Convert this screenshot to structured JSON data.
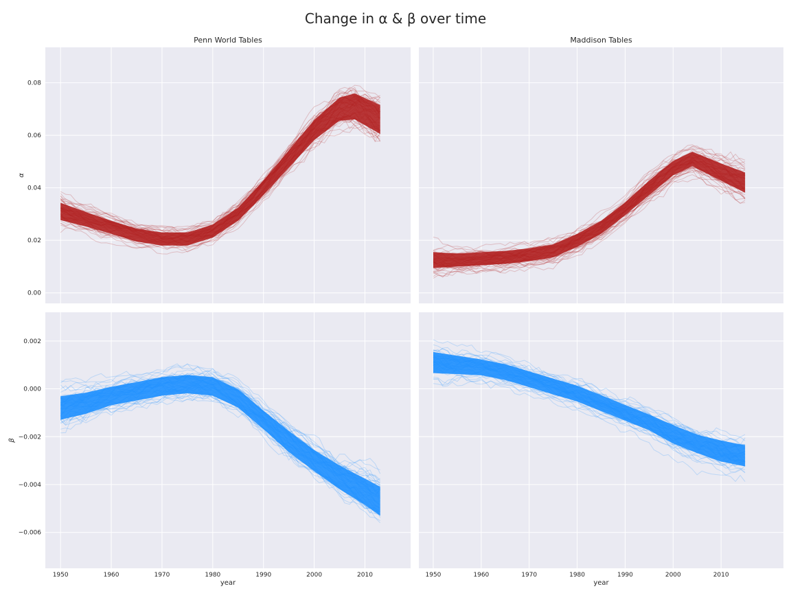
{
  "figure": {
    "title": "Change in α & β over time"
  },
  "chart_data": [
    {
      "type": "line",
      "panel": "top-left",
      "title": "Penn World Tables",
      "xlabel": "",
      "ylabel": "α",
      "xlim": [
        1947,
        2019
      ],
      "ylim": [
        -0.004,
        0.0935
      ],
      "x_ticks": [
        1950,
        1960,
        1970,
        1980,
        1990,
        2000,
        2010
      ],
      "y_ticks": [
        0.0,
        0.02,
        0.04,
        0.06,
        0.08
      ],
      "y_tick_labels": [
        "0.00",
        "0.02",
        "0.04",
        "0.06",
        "0.08"
      ],
      "x_tick_labels_visible": false,
      "grid": true,
      "color": "#b22222",
      "series": [
        {
          "x": [
            1950,
            1955,
            1960,
            1965,
            1970,
            1975,
            1980,
            1985,
            1990,
            1995,
            2000,
            2005,
            2008,
            2013
          ],
          "values": [
            0.031,
            0.028,
            0.025,
            0.022,
            0.0205,
            0.0205,
            0.0235,
            0.03,
            0.04,
            0.051,
            0.062,
            0.07,
            0.071,
            0.066
          ],
          "spread": [
            0.006,
            0.005,
            0.0045,
            0.0045,
            0.0045,
            0.0045,
            0.0045,
            0.0045,
            0.005,
            0.006,
            0.007,
            0.008,
            0.009,
            0.01
          ]
        }
      ]
    },
    {
      "type": "line",
      "panel": "top-right",
      "title": "Maddison Tables",
      "xlabel": "",
      "ylabel": "",
      "xlim": [
        1947,
        2023
      ],
      "ylim": [
        -0.004,
        0.0935
      ],
      "x_ticks": [
        1950,
        1960,
        1970,
        1980,
        1990,
        2000,
        2010
      ],
      "y_ticks": [
        0.0,
        0.02,
        0.04,
        0.06,
        0.08
      ],
      "x_tick_labels_visible": false,
      "y_tick_labels_visible": false,
      "grid": true,
      "color": "#b22222",
      "series": [
        {
          "x": [
            1950,
            1955,
            1960,
            1965,
            1970,
            1975,
            1980,
            1985,
            1990,
            1995,
            2000,
            2004,
            2010,
            2015
          ],
          "values": [
            0.0125,
            0.0125,
            0.013,
            0.0135,
            0.0145,
            0.016,
            0.02,
            0.025,
            0.032,
            0.04,
            0.0475,
            0.051,
            0.046,
            0.042
          ],
          "spread": [
            0.0055,
            0.0045,
            0.0045,
            0.0045,
            0.0045,
            0.0045,
            0.0045,
            0.0045,
            0.0045,
            0.005,
            0.005,
            0.005,
            0.006,
            0.007
          ]
        }
      ]
    },
    {
      "type": "line",
      "panel": "bottom-left",
      "title": "",
      "xlabel": "year",
      "ylabel": "β",
      "xlim": [
        1947,
        2019
      ],
      "ylim": [
        -0.0075,
        0.0032
      ],
      "x_ticks": [
        1950,
        1960,
        1970,
        1980,
        1990,
        2000,
        2010
      ],
      "x_tick_labels": [
        "1950",
        "1960",
        "1970",
        "1980",
        "1990",
        "2000",
        "2010"
      ],
      "y_ticks": [
        -0.006,
        -0.004,
        -0.002,
        0.0,
        0.002
      ],
      "y_tick_labels": [
        "−0.006",
        "−0.004",
        "−0.002",
        "0.000",
        "0.002"
      ],
      "grid": true,
      "color": "#1e90ff",
      "series": [
        {
          "x": [
            1950,
            1955,
            1960,
            1965,
            1970,
            1975,
            1980,
            1985,
            1990,
            1995,
            2000,
            2005,
            2010,
            2013
          ],
          "values": [
            -0.0008,
            -0.0006,
            -0.0003,
            -0.0001,
            0.0001,
            0.0002,
            0.0001,
            -0.0004,
            -0.0013,
            -0.0022,
            -0.003,
            -0.0037,
            -0.0043,
            -0.0047
          ],
          "spread": [
            0.0009,
            0.0008,
            0.0007,
            0.0007,
            0.0007,
            0.0007,
            0.0007,
            0.0007,
            0.0007,
            0.0008,
            0.0008,
            0.0009,
            0.001,
            0.0011
          ]
        }
      ]
    },
    {
      "type": "line",
      "panel": "bottom-right",
      "title": "",
      "xlabel": "year",
      "ylabel": "",
      "xlim": [
        1947,
        2023
      ],
      "ylim": [
        -0.0075,
        0.0032
      ],
      "x_ticks": [
        1950,
        1960,
        1970,
        1980,
        1990,
        2000,
        2010
      ],
      "x_tick_labels": [
        "1950",
        "1960",
        "1970",
        "1980",
        "1990",
        "2000",
        "2010"
      ],
      "y_ticks": [
        -0.006,
        -0.004,
        -0.002,
        0.0,
        0.002
      ],
      "y_tick_labels_visible": false,
      "grid": true,
      "color": "#1e90ff",
      "series": [
        {
          "x": [
            1950,
            1955,
            1960,
            1965,
            1970,
            1975,
            1980,
            1985,
            1990,
            1995,
            2000,
            2005,
            2010,
            2015
          ],
          "values": [
            0.0011,
            0.001,
            0.0009,
            0.0007,
            0.0004,
            0.0001,
            -0.0002,
            -0.0006,
            -0.001,
            -0.0014,
            -0.0019,
            -0.0023,
            -0.0026,
            -0.0028
          ],
          "spread": [
            0.0008,
            0.0007,
            0.0006,
            0.0006,
            0.0006,
            0.0006,
            0.0006,
            0.0006,
            0.0006,
            0.0006,
            0.0007,
            0.0007,
            0.0008,
            0.0008
          ]
        }
      ]
    }
  ]
}
